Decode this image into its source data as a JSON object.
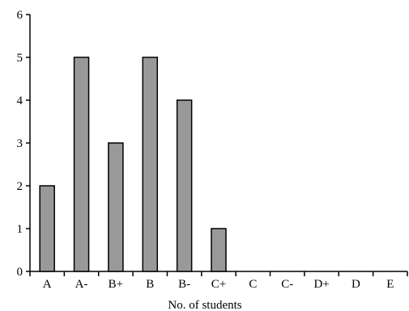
{
  "chart_data": {
    "type": "bar",
    "title": "",
    "xlabel": "No. of students",
    "ylabel": "",
    "categories": [
      "A",
      "A-",
      "B+",
      "B",
      "B-",
      "C+",
      "C",
      "C-",
      "D+",
      "D",
      "E"
    ],
    "values": [
      2,
      5,
      3,
      5,
      4,
      1,
      0,
      0,
      0,
      0,
      0
    ],
    "ylim": [
      0,
      6
    ],
    "yticks": [
      "0",
      "1",
      "2",
      "3",
      "4",
      "5",
      "6"
    ],
    "grid": false,
    "legend": "none",
    "colors": {
      "bar_fill": "#999999",
      "bar_stroke": "#000000",
      "axis": "#000000"
    }
  }
}
